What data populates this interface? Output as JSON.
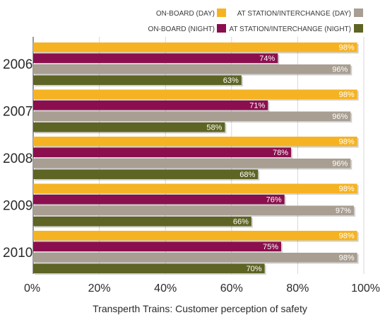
{
  "chart_data": {
    "type": "bar",
    "orientation": "horizontal",
    "categories": [
      "2006",
      "2007",
      "2008",
      "2009",
      "2010"
    ],
    "series": [
      {
        "name": "ON-BOARD (DAY)",
        "color": "#f5b324",
        "values": [
          98,
          98,
          98,
          98,
          98
        ]
      },
      {
        "name": "ON-BOARD (NIGHT)",
        "color": "#8b0f4e",
        "values": [
          74,
          71,
          78,
          76,
          75
        ]
      },
      {
        "name": "AT STATION/INTERCHANGE (DAY)",
        "color": "#a89e91",
        "values": [
          96,
          96,
          96,
          97,
          98
        ]
      },
      {
        "name": "AT STATION/INTERCHANGE (NIGHT)",
        "color": "#5e6423",
        "values": [
          63,
          58,
          68,
          66,
          70
        ]
      }
    ],
    "value_suffix": "%",
    "xlim": [
      0,
      100
    ],
    "x_ticks": [
      "0%",
      "20%",
      "40%",
      "60%",
      "80%",
      "100%"
    ],
    "title": "Transperth Trains: Customer perception of safety",
    "legend_position": "top-right",
    "grid": true
  }
}
